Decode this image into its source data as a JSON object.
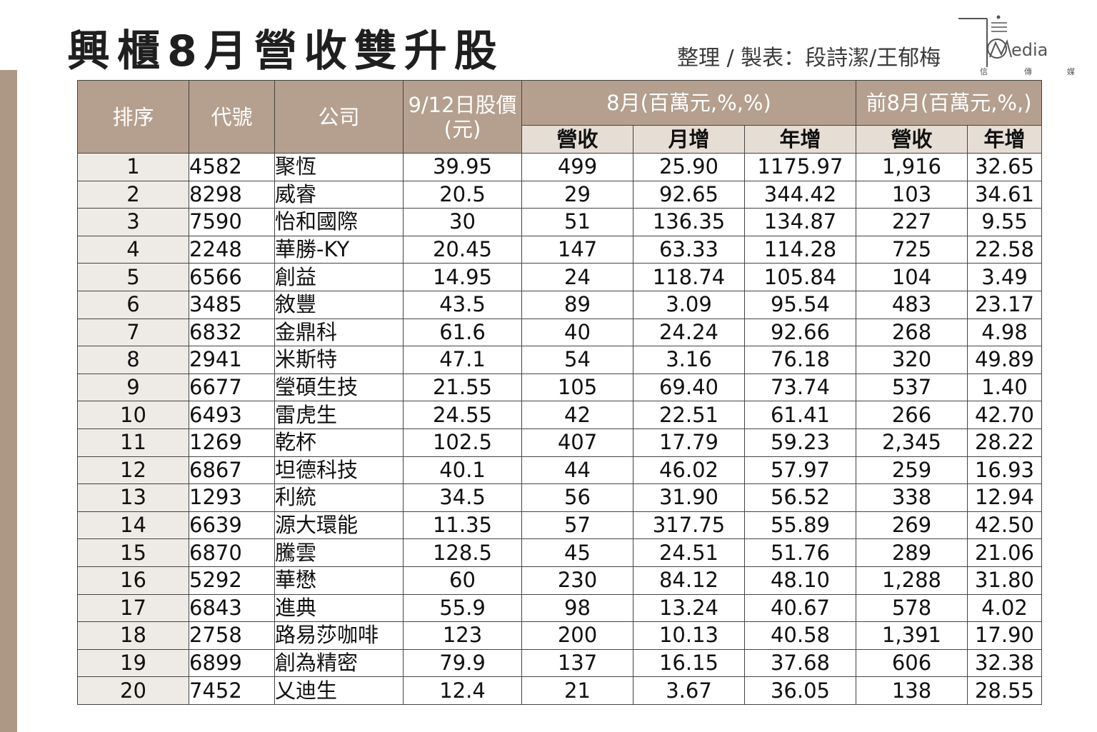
{
  "title": "興櫃8月營收雙升股",
  "credit": "整理 / 製表：段詩潔/王郁梅",
  "logo": {
    "letters": "edia",
    "sub": [
      "信",
      "傳",
      "媒"
    ]
  },
  "table": {
    "headers": {
      "rank": "排序",
      "code": "代號",
      "company": "公司",
      "price": "9/12日股價(元)",
      "group_aug": "8月(百萬元,%,%)",
      "group_ytd": "前8月(百萬元,%,)",
      "aug_rev": "營收",
      "aug_mom": "月增",
      "aug_yoy": "年增",
      "ytd_rev": "營收",
      "ytd_yoy": "年增"
    },
    "rows": [
      {
        "rank": "1",
        "code": "4582",
        "company": "聚恆",
        "price": "39.95",
        "rev": "499",
        "mom": "25.90",
        "yoy": "1175.97",
        "ytd_rev": "1,916",
        "ytd_yoy": "32.65"
      },
      {
        "rank": "2",
        "code": "8298",
        "company": "威睿",
        "price": "20.5",
        "rev": "29",
        "mom": "92.65",
        "yoy": "344.42",
        "ytd_rev": "103",
        "ytd_yoy": "34.61"
      },
      {
        "rank": "3",
        "code": "7590",
        "company": "怡和國際",
        "price": "30",
        "rev": "51",
        "mom": "136.35",
        "yoy": "134.87",
        "ytd_rev": "227",
        "ytd_yoy": "9.55"
      },
      {
        "rank": "4",
        "code": "2248",
        "company": "華勝-KY",
        "price": "20.45",
        "rev": "147",
        "mom": "63.33",
        "yoy": "114.28",
        "ytd_rev": "725",
        "ytd_yoy": "22.58"
      },
      {
        "rank": "5",
        "code": "6566",
        "company": "創益",
        "price": "14.95",
        "rev": "24",
        "mom": "118.74",
        "yoy": "105.84",
        "ytd_rev": "104",
        "ytd_yoy": "3.49"
      },
      {
        "rank": "6",
        "code": "3485",
        "company": "敘豐",
        "price": "43.5",
        "rev": "89",
        "mom": "3.09",
        "yoy": "95.54",
        "ytd_rev": "483",
        "ytd_yoy": "23.17"
      },
      {
        "rank": "7",
        "code": "6832",
        "company": "金鼎科",
        "price": "61.6",
        "rev": "40",
        "mom": "24.24",
        "yoy": "92.66",
        "ytd_rev": "268",
        "ytd_yoy": "4.98"
      },
      {
        "rank": "8",
        "code": "2941",
        "company": "米斯特",
        "price": "47.1",
        "rev": "54",
        "mom": "3.16",
        "yoy": "76.18",
        "ytd_rev": "320",
        "ytd_yoy": "49.89"
      },
      {
        "rank": "9",
        "code": "6677",
        "company": "瑩碩生技",
        "price": "21.55",
        "rev": "105",
        "mom": "69.40",
        "yoy": "73.74",
        "ytd_rev": "537",
        "ytd_yoy": "1.40"
      },
      {
        "rank": "10",
        "code": "6493",
        "company": "雷虎生",
        "price": "24.55",
        "rev": "42",
        "mom": "22.51",
        "yoy": "61.41",
        "ytd_rev": "266",
        "ytd_yoy": "42.70"
      },
      {
        "rank": "11",
        "code": "1269",
        "company": "乾杯",
        "price": "102.5",
        "rev": "407",
        "mom": "17.79",
        "yoy": "59.23",
        "ytd_rev": "2,345",
        "ytd_yoy": "28.22"
      },
      {
        "rank": "12",
        "code": "6867",
        "company": "坦德科技",
        "price": "40.1",
        "rev": "44",
        "mom": "46.02",
        "yoy": "57.97",
        "ytd_rev": "259",
        "ytd_yoy": "16.93"
      },
      {
        "rank": "13",
        "code": "1293",
        "company": "利統",
        "price": "34.5",
        "rev": "56",
        "mom": "31.90",
        "yoy": "56.52",
        "ytd_rev": "338",
        "ytd_yoy": "12.94"
      },
      {
        "rank": "14",
        "code": "6639",
        "company": "源大環能",
        "price": "11.35",
        "rev": "57",
        "mom": "317.75",
        "yoy": "55.89",
        "ytd_rev": "269",
        "ytd_yoy": "42.50"
      },
      {
        "rank": "15",
        "code": "6870",
        "company": "騰雲",
        "price": "128.5",
        "rev": "45",
        "mom": "24.51",
        "yoy": "51.76",
        "ytd_rev": "289",
        "ytd_yoy": "21.06"
      },
      {
        "rank": "16",
        "code": "5292",
        "company": "華懋",
        "price": "60",
        "rev": "230",
        "mom": "84.12",
        "yoy": "48.10",
        "ytd_rev": "1,288",
        "ytd_yoy": "31.80"
      },
      {
        "rank": "17",
        "code": "6843",
        "company": "進典",
        "price": "55.9",
        "rev": "98",
        "mom": "13.24",
        "yoy": "40.67",
        "ytd_rev": "578",
        "ytd_yoy": "4.02"
      },
      {
        "rank": "18",
        "code": "2758",
        "company": "路易莎咖啡",
        "price": "123",
        "rev": "200",
        "mom": "10.13",
        "yoy": "40.58",
        "ytd_rev": "1,391",
        "ytd_yoy": "17.90"
      },
      {
        "rank": "19",
        "code": "6899",
        "company": "創為精密",
        "price": "79.9",
        "rev": "137",
        "mom": "16.15",
        "yoy": "37.68",
        "ytd_rev": "606",
        "ytd_yoy": "32.38"
      },
      {
        "rank": "20",
        "code": "7452",
        "company": "乂迪生",
        "price": "12.4",
        "rev": "21",
        "mom": "3.67",
        "yoy": "36.05",
        "ytd_rev": "138",
        "ytd_yoy": "28.55"
      }
    ]
  }
}
